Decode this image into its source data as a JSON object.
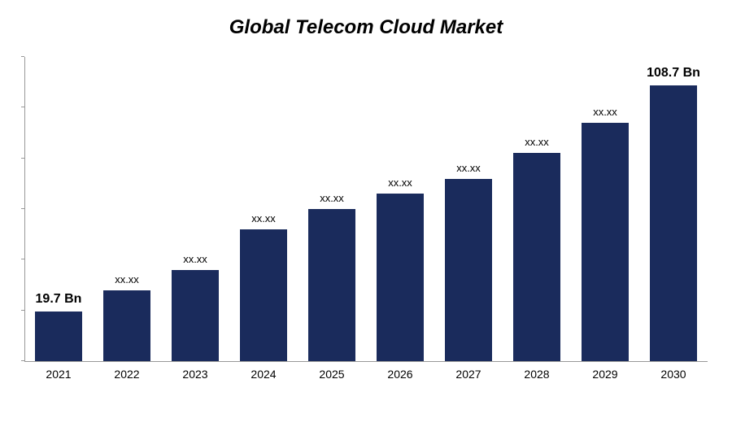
{
  "chart": {
    "type": "bar",
    "title": "Global Telecom Cloud Market",
    "title_fontsize": 24,
    "title_fontstyle": "italic bold",
    "background_color": "#ffffff",
    "bar_color": "#1a2b5c",
    "axis_color": "#999999",
    "text_color": "#000000",
    "label_fontsize": 13,
    "bold_label_fontsize": 16,
    "xlabel_fontsize": 14,
    "bar_width_ratio": 0.68,
    "y_ticks": [
      0,
      20,
      40,
      60,
      80,
      100,
      120
    ],
    "y_max": 120,
    "categories": [
      "2021",
      "2022",
      "2023",
      "2024",
      "2025",
      "2026",
      "2027",
      "2028",
      "2029",
      "2030"
    ],
    "values": [
      19.7,
      28,
      36,
      52,
      60,
      66,
      72,
      82,
      94,
      108.7
    ],
    "value_labels": [
      "19.7 Bn",
      "xx.xx",
      "xx.xx",
      "xx.xx",
      "xx.xx",
      "xx.xx",
      "xx.xx",
      "xx.xx",
      "xx.xx",
      "108.7 Bn"
    ],
    "label_bold": [
      true,
      false,
      false,
      false,
      false,
      false,
      false,
      false,
      false,
      true
    ]
  }
}
